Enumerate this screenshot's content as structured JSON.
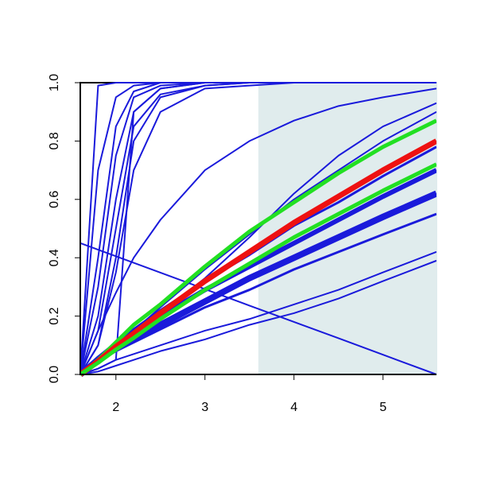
{
  "chart_data": {
    "type": "line",
    "x": [
      1.6,
      1.8,
      2.0,
      2.2,
      2.5,
      3.0,
      3.5,
      4.0,
      4.5,
      5.0,
      5.6
    ],
    "xlim": [
      1.6,
      5.6
    ],
    "xticks": [
      2,
      3,
      4,
      5
    ],
    "ylim": [
      0,
      1
    ],
    "yticks": [
      {
        "value": 0,
        "label": "0.0"
      },
      0.2,
      0.4,
      0.6,
      0.8,
      {
        "value": 1,
        "label": "1.0"
      }
    ],
    "shade_x": [
      3.6,
      5.6
    ],
    "shade_color": "#e0eced",
    "series": [
      {
        "color": "#1a1adb",
        "width": 2,
        "values": [
          0,
          0.99,
          1,
          1,
          1,
          1,
          1,
          1,
          1,
          1,
          1
        ]
      },
      {
        "color": "#1a1adb",
        "width": 2,
        "values": [
          0,
          0.7,
          0.95,
          0.99,
          1,
          1,
          1,
          1,
          1,
          1,
          1
        ]
      },
      {
        "color": "#1a1adb",
        "width": 2,
        "values": [
          0,
          0.4,
          0.85,
          0.97,
          1,
          1,
          1,
          1,
          1,
          1,
          1
        ]
      },
      {
        "color": "#1a1adb",
        "width": 2,
        "values": [
          0,
          0.3,
          0.75,
          0.95,
          0.99,
          1,
          1,
          1,
          1,
          1,
          1
        ]
      },
      {
        "color": "#1a1adb",
        "width": 2,
        "values": [
          0,
          0.2,
          0.6,
          0.9,
          0.98,
          1,
          1,
          1,
          1,
          1,
          1
        ]
      },
      {
        "color": "#1a1adb",
        "width": 2,
        "values": [
          0,
          0.15,
          0.5,
          0.85,
          0.96,
          0.99,
          1,
          1,
          1,
          1,
          1
        ]
      },
      {
        "color": "#1a1adb",
        "width": 2,
        "values": [
          0,
          0.1,
          0.4,
          0.8,
          0.95,
          0.99,
          1,
          1,
          1,
          1,
          1
        ]
      },
      {
        "color": "#1a1adb",
        "width": 2,
        "values": [
          0,
          0.02,
          0.05,
          0.9,
          0.98,
          1,
          1,
          1,
          1,
          1,
          1
        ]
      },
      {
        "color": "#1a1adb",
        "width": 2,
        "values": [
          0,
          0.1,
          0.35,
          0.7,
          0.9,
          0.98,
          0.99,
          1,
          1,
          1,
          1
        ]
      },
      {
        "color": "#1a1adb",
        "width": 2,
        "values": [
          0,
          0.15,
          0.28,
          0.4,
          0.53,
          0.7,
          0.8,
          0.87,
          0.92,
          0.95,
          0.98
        ]
      },
      {
        "color": "#1a1adb",
        "width": 2,
        "values": [
          0.45,
          0.4275,
          0.405,
          0.3825,
          0.349,
          0.2925,
          0.236,
          0.18,
          0.124,
          0.0675,
          0
        ]
      },
      {
        "color": "#1a1adb",
        "width": 2,
        "values": [
          0,
          0.04,
          0.09,
          0.14,
          0.21,
          0.33,
          0.47,
          0.62,
          0.75,
          0.85,
          0.93
        ]
      },
      {
        "color": "#1a1adb",
        "width": 2,
        "values": [
          0,
          0.05,
          0.1,
          0.15,
          0.23,
          0.36,
          0.48,
          0.6,
          0.7,
          0.8,
          0.9
        ]
      },
      {
        "color": "#1a1adb",
        "width": 3,
        "values": [
          0,
          0.06,
          0.11,
          0.155,
          0.22,
          0.32,
          0.41,
          0.51,
          0.59,
          0.68,
          0.78
        ]
      },
      {
        "color": "#1a1adb",
        "width": 6,
        "values": [
          0,
          0.055,
          0.1,
          0.14,
          0.2,
          0.29,
          0.37,
          0.45,
          0.53,
          0.61,
          0.7
        ]
      },
      {
        "color": "#1a1adb",
        "width": 8,
        "values": [
          0,
          0.05,
          0.09,
          0.12,
          0.17,
          0.25,
          0.33,
          0.4,
          0.47,
          0.54,
          0.62
        ]
      },
      {
        "color": "#1a1adb",
        "width": 3,
        "values": [
          0,
          0.045,
          0.08,
          0.11,
          0.155,
          0.23,
          0.29,
          0.36,
          0.42,
          0.48,
          0.55
        ]
      },
      {
        "color": "#1a1adb",
        "width": 2,
        "values": [
          0,
          0.02,
          0.05,
          0.07,
          0.1,
          0.15,
          0.19,
          0.24,
          0.29,
          0.35,
          0.42
        ]
      },
      {
        "color": "#1a1adb",
        "width": 2,
        "values": [
          0,
          0.01,
          0.03,
          0.05,
          0.08,
          0.12,
          0.17,
          0.21,
          0.26,
          0.32,
          0.39
        ]
      },
      {
        "color": "#22e022",
        "width": 5,
        "values": [
          0,
          0.05,
          0.11,
          0.17,
          0.24,
          0.37,
          0.49,
          0.59,
          0.69,
          0.78,
          0.87
        ]
      },
      {
        "color": "#ee1111",
        "width": 7,
        "values": [
          0,
          0.045,
          0.095,
          0.14,
          0.21,
          0.32,
          0.42,
          0.52,
          0.61,
          0.7,
          0.8
        ]
      },
      {
        "color": "#22e022",
        "width": 5,
        "values": [
          0,
          0.04,
          0.085,
          0.125,
          0.19,
          0.29,
          0.38,
          0.47,
          0.55,
          0.63,
          0.72
        ]
      }
    ]
  }
}
